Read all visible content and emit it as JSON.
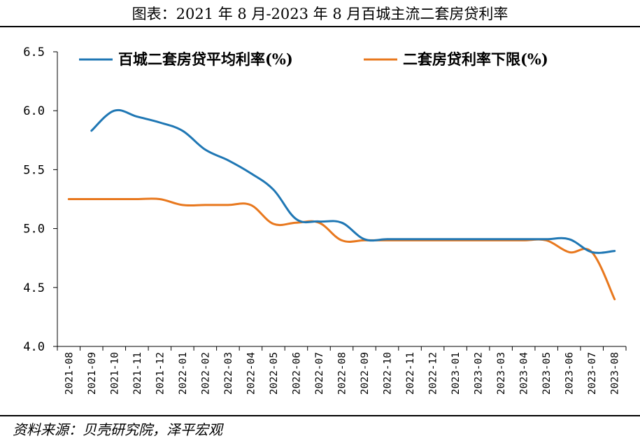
{
  "title": "图表：2021 年 8 月-2023 年 8 月百城主流二套房贷利率",
  "source": "资料来源：贝壳研究院，泽平宏观",
  "chart_data": {
    "type": "line",
    "categories": [
      "2021-08",
      "2021-09",
      "2021-10",
      "2021-11",
      "2021-12",
      "2022-01",
      "2022-02",
      "2022-03",
      "2022-04",
      "2022-05",
      "2022-06",
      "2022-07",
      "2022-08",
      "2022-09",
      "2022-10",
      "2022-11",
      "2022-12",
      "2023-01",
      "2023-02",
      "2023-03",
      "2023-04",
      "2023-05",
      "2023-06",
      "2023-07",
      "2023-08"
    ],
    "ylim": [
      4.0,
      6.5
    ],
    "yticks": [
      "4.0",
      "4.5",
      "5.0",
      "5.5",
      "6.0",
      "6.5"
    ],
    "legend_position": "top",
    "series": [
      {
        "name": "百城二套房贷平均利率(%)",
        "color": "#1F77B4",
        "values": [
          null,
          5.83,
          6.0,
          5.95,
          5.9,
          5.83,
          5.67,
          5.58,
          5.47,
          5.33,
          5.08,
          5.06,
          5.05,
          4.91,
          4.91,
          4.91,
          4.91,
          4.91,
          4.91,
          4.91,
          4.91,
          4.91,
          4.91,
          4.8,
          4.81
        ]
      },
      {
        "name": "二套房贷利率下限(%)",
        "color": "#E8781E",
        "values": [
          5.25,
          5.25,
          5.25,
          5.25,
          5.25,
          5.2,
          5.2,
          5.2,
          5.2,
          5.04,
          5.05,
          5.05,
          4.9,
          4.9,
          4.9,
          4.9,
          4.9,
          4.9,
          4.9,
          4.9,
          4.9,
          4.9,
          4.8,
          4.8,
          4.4
        ]
      }
    ]
  }
}
